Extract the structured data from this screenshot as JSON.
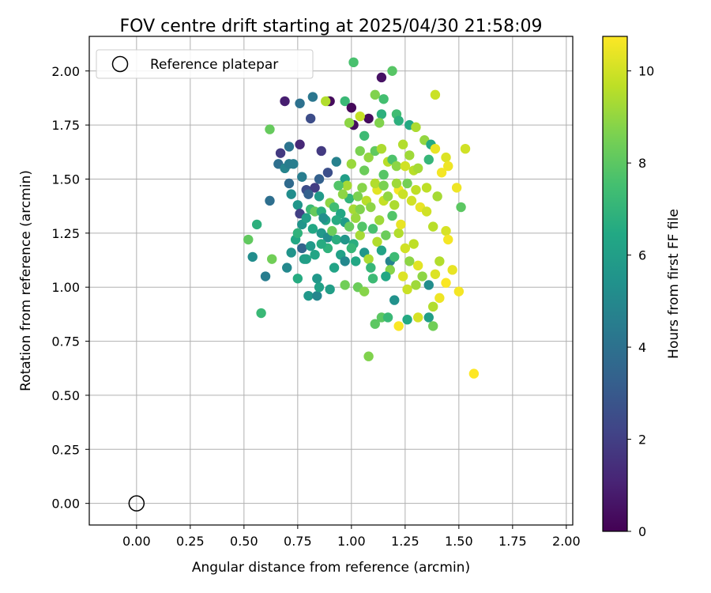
{
  "chart_data": {
    "type": "scatter",
    "title": "FOV centre drift starting at 2025/04/30 21:58:09",
    "xlabel": "Angular distance from reference (arcmin)",
    "ylabel": "Rotation from reference (arcmin)",
    "xlim": [
      -0.22,
      2.03
    ],
    "ylim": [
      -0.1,
      2.16
    ],
    "x_ticks": [
      "0.00",
      "0.25",
      "0.50",
      "0.75",
      "1.00",
      "1.25",
      "1.50",
      "1.75",
      "2.00"
    ],
    "y_ticks": [
      "0.00",
      "0.25",
      "0.50",
      "0.75",
      "1.00",
      "1.25",
      "1.50",
      "1.75",
      "2.00"
    ],
    "grid": true,
    "legend": {
      "position": "top-left",
      "entries": [
        {
          "label": "Reference platepar",
          "marker": "open-circle"
        }
      ]
    },
    "reference_point": {
      "x": 0.0,
      "y": 0.0
    },
    "colorbar": {
      "label": "Hours from first FF file",
      "min": 0,
      "max": 10.75,
      "ticks": [
        "0",
        "2",
        "4",
        "6",
        "8",
        "10"
      ],
      "colormap": "viridis"
    },
    "points": [
      [
        0.69,
        1.86,
        0.9
      ],
      [
        0.76,
        1.85,
        4.0
      ],
      [
        0.82,
        1.88,
        4.2
      ],
      [
        0.89,
        1.86,
        8.8
      ],
      [
        0.9,
        1.86,
        0.3
      ],
      [
        0.97,
        1.86,
        7.2
      ],
      [
        1.0,
        1.83,
        0.2
      ],
      [
        1.01,
        1.75,
        0.4
      ],
      [
        1.01,
        2.04,
        7.6
      ],
      [
        1.14,
        1.97,
        0.5
      ],
      [
        1.19,
        2.0,
        7.9
      ],
      [
        1.08,
        1.78,
        0.3
      ],
      [
        1.14,
        1.8,
        6.8
      ],
      [
        0.81,
        1.78,
        2.5
      ],
      [
        0.88,
        1.86,
        9.5
      ],
      [
        1.04,
        1.79,
        9.8
      ],
      [
        1.11,
        1.89,
        8.7
      ],
      [
        1.15,
        1.87,
        7.5
      ],
      [
        1.39,
        1.89,
        9.9
      ],
      [
        1.21,
        1.8,
        7.4
      ],
      [
        0.62,
        1.73,
        8.2
      ],
      [
        0.67,
        1.62,
        1.8
      ],
      [
        0.71,
        1.65,
        4.1
      ],
      [
        0.76,
        1.66,
        1.2
      ],
      [
        0.86,
        1.63,
        1.8
      ],
      [
        0.99,
        1.76,
        8.9
      ],
      [
        1.06,
        1.7,
        7.3
      ],
      [
        1.13,
        1.76,
        8.7
      ],
      [
        1.22,
        1.77,
        6.8
      ],
      [
        1.27,
        1.75,
        6.5
      ],
      [
        1.3,
        1.74,
        9.4
      ],
      [
        1.34,
        1.68,
        9.0
      ],
      [
        1.37,
        1.66,
        6.5
      ],
      [
        1.39,
        1.64,
        10.4
      ],
      [
        1.53,
        1.64,
        10.0
      ],
      [
        0.66,
        1.57,
        3.9
      ],
      [
        0.69,
        1.55,
        4.8
      ],
      [
        0.71,
        1.57,
        4.5
      ],
      [
        0.73,
        1.57,
        4.5
      ],
      [
        0.77,
        1.51,
        4.5
      ],
      [
        0.79,
        1.45,
        2.5
      ],
      [
        0.83,
        1.46,
        1.9
      ],
      [
        0.85,
        1.5,
        3.3
      ],
      [
        0.89,
        1.53,
        2.6
      ],
      [
        0.93,
        1.58,
        4.7
      ],
      [
        0.97,
        1.5,
        6.0
      ],
      [
        1.0,
        1.57,
        9.1
      ],
      [
        1.04,
        1.63,
        8.6
      ],
      [
        1.08,
        1.6,
        9.0
      ],
      [
        1.11,
        1.63,
        8.1
      ],
      [
        1.14,
        1.64,
        9.4
      ],
      [
        1.17,
        1.58,
        9.6
      ],
      [
        1.19,
        1.59,
        7.7
      ],
      [
        1.21,
        1.56,
        8.9
      ],
      [
        1.24,
        1.66,
        9.5
      ],
      [
        1.27,
        1.61,
        9.2
      ],
      [
        1.29,
        1.54,
        9.6
      ],
      [
        1.31,
        1.55,
        9.3
      ],
      [
        1.36,
        1.59,
        7.1
      ],
      [
        1.42,
        1.53,
        10.6
      ],
      [
        1.44,
        1.6,
        10.2
      ],
      [
        1.45,
        1.56,
        10.5
      ],
      [
        1.49,
        1.46,
        10.5
      ],
      [
        0.62,
        1.4,
        3.9
      ],
      [
        0.71,
        1.48,
        3.7
      ],
      [
        0.72,
        1.43,
        5.2
      ],
      [
        0.75,
        1.38,
        5.6
      ],
      [
        0.76,
        1.34,
        2.0
      ],
      [
        0.77,
        1.29,
        5.5
      ],
      [
        0.79,
        1.32,
        6.0
      ],
      [
        0.81,
        1.36,
        7.2
      ],
      [
        0.83,
        1.35,
        8.2
      ],
      [
        0.86,
        1.35,
        6.7
      ],
      [
        0.88,
        1.31,
        6.2
      ],
      [
        0.9,
        1.39,
        8.9
      ],
      [
        0.92,
        1.37,
        7.4
      ],
      [
        0.95,
        1.34,
        6.4
      ],
      [
        0.97,
        1.3,
        5.9
      ],
      [
        0.99,
        1.41,
        7.0
      ],
      [
        1.01,
        1.36,
        9.3
      ],
      [
        1.03,
        1.42,
        8.6
      ],
      [
        1.05,
        1.46,
        8.8
      ],
      [
        1.07,
        1.4,
        9.6
      ],
      [
        1.09,
        1.37,
        8.9
      ],
      [
        1.12,
        1.45,
        10.3
      ],
      [
        1.15,
        1.4,
        9.8
      ],
      [
        1.17,
        1.42,
        9.0
      ],
      [
        1.2,
        1.38,
        9.4
      ],
      [
        1.22,
        1.45,
        10.6
      ],
      [
        1.24,
        1.43,
        9.9
      ],
      [
        1.26,
        1.48,
        8.5
      ],
      [
        1.28,
        1.4,
        10.0
      ],
      [
        1.3,
        1.45,
        9.7
      ],
      [
        1.32,
        1.37,
        10.4
      ],
      [
        1.35,
        1.35,
        10.0
      ],
      [
        1.38,
        1.28,
        9.6
      ],
      [
        1.44,
        1.26,
        10.1
      ],
      [
        1.45,
        1.22,
        10.6
      ],
      [
        1.51,
        1.37,
        8.0
      ],
      [
        0.52,
        1.22,
        8.1
      ],
      [
        0.54,
        1.14,
        5.2
      ],
      [
        0.56,
        1.29,
        6.8
      ],
      [
        0.6,
        1.05,
        4.5
      ],
      [
        0.63,
        1.13,
        8.4
      ],
      [
        0.7,
        1.09,
        5.0
      ],
      [
        0.72,
        1.16,
        5.5
      ],
      [
        0.74,
        1.22,
        6.4
      ],
      [
        0.77,
        1.18,
        3.5
      ],
      [
        0.79,
        1.13,
        6.1
      ],
      [
        0.81,
        1.19,
        5.8
      ],
      [
        0.83,
        1.15,
        6.3
      ],
      [
        0.86,
        1.25,
        5.7
      ],
      [
        0.89,
        1.23,
        5.2
      ],
      [
        0.91,
        1.26,
        8.3
      ],
      [
        0.93,
        1.22,
        6.7
      ],
      [
        0.95,
        1.15,
        6.1
      ],
      [
        0.97,
        1.12,
        5.0
      ],
      [
        0.99,
        1.28,
        8.2
      ],
      [
        1.01,
        1.2,
        6.7
      ],
      [
        1.04,
        1.24,
        9.3
      ],
      [
        1.06,
        1.16,
        5.6
      ],
      [
        1.08,
        1.13,
        9.4
      ],
      [
        1.1,
        1.27,
        7.6
      ],
      [
        1.12,
        1.21,
        9.5
      ],
      [
        1.14,
        1.17,
        6.2
      ],
      [
        1.16,
        1.24,
        8.3
      ],
      [
        1.18,
        1.12,
        4.8
      ],
      [
        1.2,
        1.14,
        7.3
      ],
      [
        1.22,
        1.25,
        9.5
      ],
      [
        1.25,
        1.18,
        10.0
      ],
      [
        1.27,
        1.12,
        8.9
      ],
      [
        1.29,
        1.2,
        9.7
      ],
      [
        1.31,
        1.1,
        10.3
      ],
      [
        1.33,
        1.05,
        8.9
      ],
      [
        1.36,
        1.01,
        5.2
      ],
      [
        1.39,
        1.06,
        10.2
      ],
      [
        1.41,
        1.12,
        9.5
      ],
      [
        1.44,
        1.02,
        10.7
      ],
      [
        1.47,
        1.08,
        10.4
      ],
      [
        1.5,
        0.98,
        10.6
      ],
      [
        0.58,
        0.88,
        7.2
      ],
      [
        0.75,
        1.04,
        6.6
      ],
      [
        0.8,
        0.96,
        5.7
      ],
      [
        0.84,
        0.96,
        4.9
      ],
      [
        0.85,
        1.0,
        6.1
      ],
      [
        0.9,
        0.99,
        6.0
      ],
      [
        0.97,
        1.01,
        8.4
      ],
      [
        1.03,
        1.0,
        8.3
      ],
      [
        1.06,
        0.98,
        8.8
      ],
      [
        1.08,
        0.68,
        8.7
      ],
      [
        1.11,
        0.83,
        8.0
      ],
      [
        1.14,
        0.86,
        8.0
      ],
      [
        1.17,
        0.86,
        7.2
      ],
      [
        1.2,
        0.94,
        5.4
      ],
      [
        1.22,
        0.82,
        10.7
      ],
      [
        1.26,
        0.85,
        6.5
      ],
      [
        1.31,
        0.86,
        10.1
      ],
      [
        1.36,
        0.86,
        6.0
      ],
      [
        1.38,
        0.82,
        8.4
      ],
      [
        1.41,
        0.95,
        10.5
      ],
      [
        1.38,
        0.91,
        9.5
      ],
      [
        1.57,
        0.6,
        10.8
      ],
      [
        0.92,
        1.09,
        6.2
      ],
      [
        1.1,
        1.04,
        7.3
      ],
      [
        1.18,
        1.08,
        8.8
      ],
      [
        1.24,
        1.05,
        10.2
      ],
      [
        0.96,
        1.43,
        8.9
      ],
      [
        0.98,
        1.47,
        9.3
      ],
      [
        1.02,
        1.32,
        9.1
      ],
      [
        1.05,
        1.28,
        7.8
      ],
      [
        1.13,
        1.31,
        9.2
      ],
      [
        1.19,
        1.33,
        7.8
      ],
      [
        1.23,
        1.29,
        10.4
      ],
      [
        0.85,
        1.42,
        5.8
      ],
      [
        0.82,
        1.27,
        6.4
      ],
      [
        0.94,
        1.47,
        7.8
      ],
      [
        1.06,
        1.54,
        8.3
      ],
      [
        1.15,
        1.52,
        7.9
      ],
      [
        1.25,
        1.56,
        10.0
      ],
      [
        0.8,
        1.43,
        3.3
      ],
      [
        0.87,
        1.32,
        5.3
      ],
      [
        1.0,
        1.18,
        7.1
      ],
      [
        1.02,
        1.12,
        6.4
      ],
      [
        1.09,
        1.09,
        7.1
      ],
      [
        1.16,
        1.05,
        6.4
      ],
      [
        1.26,
        0.99,
        9.9
      ],
      [
        1.3,
        1.01,
        9.2
      ],
      [
        0.84,
        1.04,
        5.7
      ],
      [
        1.11,
        1.48,
        9.5
      ],
      [
        1.15,
        1.47,
        8.6
      ],
      [
        1.35,
        1.46,
        9.7
      ],
      [
        1.4,
        1.42,
        9.3
      ],
      [
        1.21,
        1.48,
        9.2
      ],
      [
        0.93,
        1.31,
        6.6
      ],
      [
        1.04,
        1.36,
        8.7
      ],
      [
        0.75,
        1.25,
        6.9
      ],
      [
        0.78,
        1.13,
        6.0
      ],
      [
        0.89,
        1.18,
        6.9
      ],
      [
        0.86,
        1.2,
        6.6
      ],
      [
        0.97,
        1.22,
        5.6
      ]
    ]
  }
}
